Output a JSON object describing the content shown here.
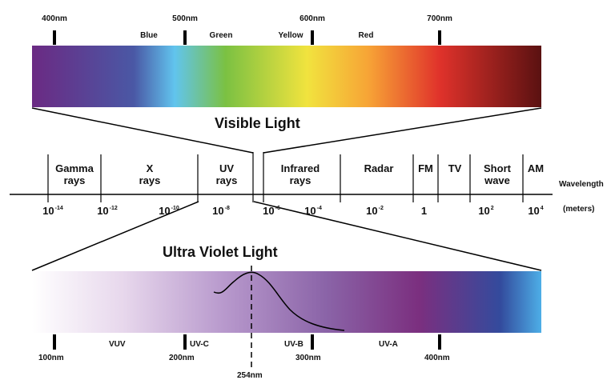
{
  "top_scale": {
    "labels": [
      "400nm",
      "500nm",
      "600nm",
      "700nm"
    ],
    "color_names": [
      "Blue",
      "Green",
      "Yellow",
      "Red"
    ],
    "title": "Visible Light",
    "gradient_colors": [
      "#6B2A83",
      "#4A58A5",
      "#61C4EE",
      "#7BC142",
      "#F1E33E",
      "#F7A436",
      "#E0322B",
      "#5A1111"
    ]
  },
  "spectrum": {
    "bands": [
      {
        "line1": "Gamma",
        "line2": "rays"
      },
      {
        "line1": "X",
        "line2": "rays"
      },
      {
        "line1": "UV",
        "line2": "rays"
      },
      {
        "line1": "Infrared",
        "line2": "rays"
      },
      {
        "line1": "Radar",
        "line2": ""
      },
      {
        "line1": "FM",
        "line2": ""
      },
      {
        "line1": "TV",
        "line2": ""
      },
      {
        "line1": "Short",
        "line2": "wave"
      },
      {
        "line1": "AM",
        "line2": ""
      }
    ],
    "ticks": [
      {
        "base": "10",
        "exp": "-14"
      },
      {
        "base": "10",
        "exp": "-12"
      },
      {
        "base": "10",
        "exp": "-10"
      },
      {
        "base": "10",
        "exp": "-8"
      },
      {
        "base": "10",
        "exp": "-6"
      },
      {
        "base": "10",
        "exp": "-4"
      },
      {
        "base": "10",
        "exp": "-2"
      },
      {
        "base": "1",
        "exp": ""
      },
      {
        "base": "10",
        "exp": "2"
      },
      {
        "base": "10",
        "exp": "4"
      }
    ],
    "axis_label": "Wavelength",
    "unit_label": "(meters)"
  },
  "uv_scale": {
    "title": "Ultra Violet Light",
    "marker_labels": [
      "100nm",
      "200nm",
      "300nm",
      "400nm"
    ],
    "regions": [
      "VUV",
      "UV-C",
      "UV-B",
      "UV-A"
    ],
    "peak_label": "254nm",
    "gradient_colors": [
      "#FFFFFF",
      "#E7D7EC",
      "#B798CC",
      "#8A63A7",
      "#7B2F7F",
      "#334B9D",
      "#4DAEE7"
    ]
  }
}
